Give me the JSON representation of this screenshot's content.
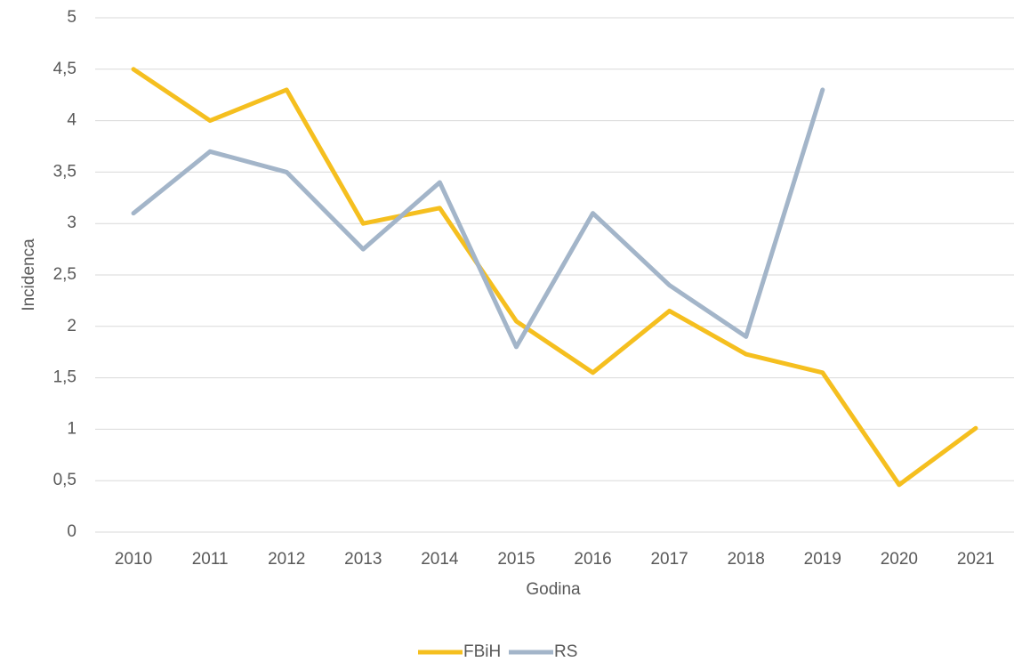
{
  "chart_data": {
    "type": "line",
    "categories": [
      "2010",
      "2011",
      "2012",
      "2013",
      "2014",
      "2015",
      "2016",
      "2017",
      "2018",
      "2019",
      "2020",
      "2021"
    ],
    "series": [
      {
        "name": "FBiH",
        "color": "#f5bf1f",
        "values": [
          4.5,
          4.0,
          4.3,
          3.0,
          3.15,
          2.05,
          1.55,
          2.15,
          1.73,
          1.55,
          0.46,
          1.01
        ]
      },
      {
        "name": "RS",
        "color": "#a3b5c9",
        "values": [
          3.1,
          3.7,
          3.5,
          2.75,
          3.4,
          1.8,
          3.1,
          2.4,
          1.9,
          4.3,
          null,
          null
        ]
      }
    ],
    "ylabel": "Incidenca",
    "xlabel": "Godina",
    "ylim": [
      0,
      5
    ],
    "yticks": [
      0,
      {
        "value": 0.5,
        "label": "0,5"
      },
      1,
      {
        "value": 1.5,
        "label": "1,5"
      },
      2,
      {
        "value": 2.5,
        "label": "2,5"
      },
      3,
      {
        "value": 3.5,
        "label": "3,5"
      },
      4,
      {
        "value": 4.5,
        "label": "4,5"
      },
      5
    ],
    "grid": true,
    "legend": "bottom"
  }
}
